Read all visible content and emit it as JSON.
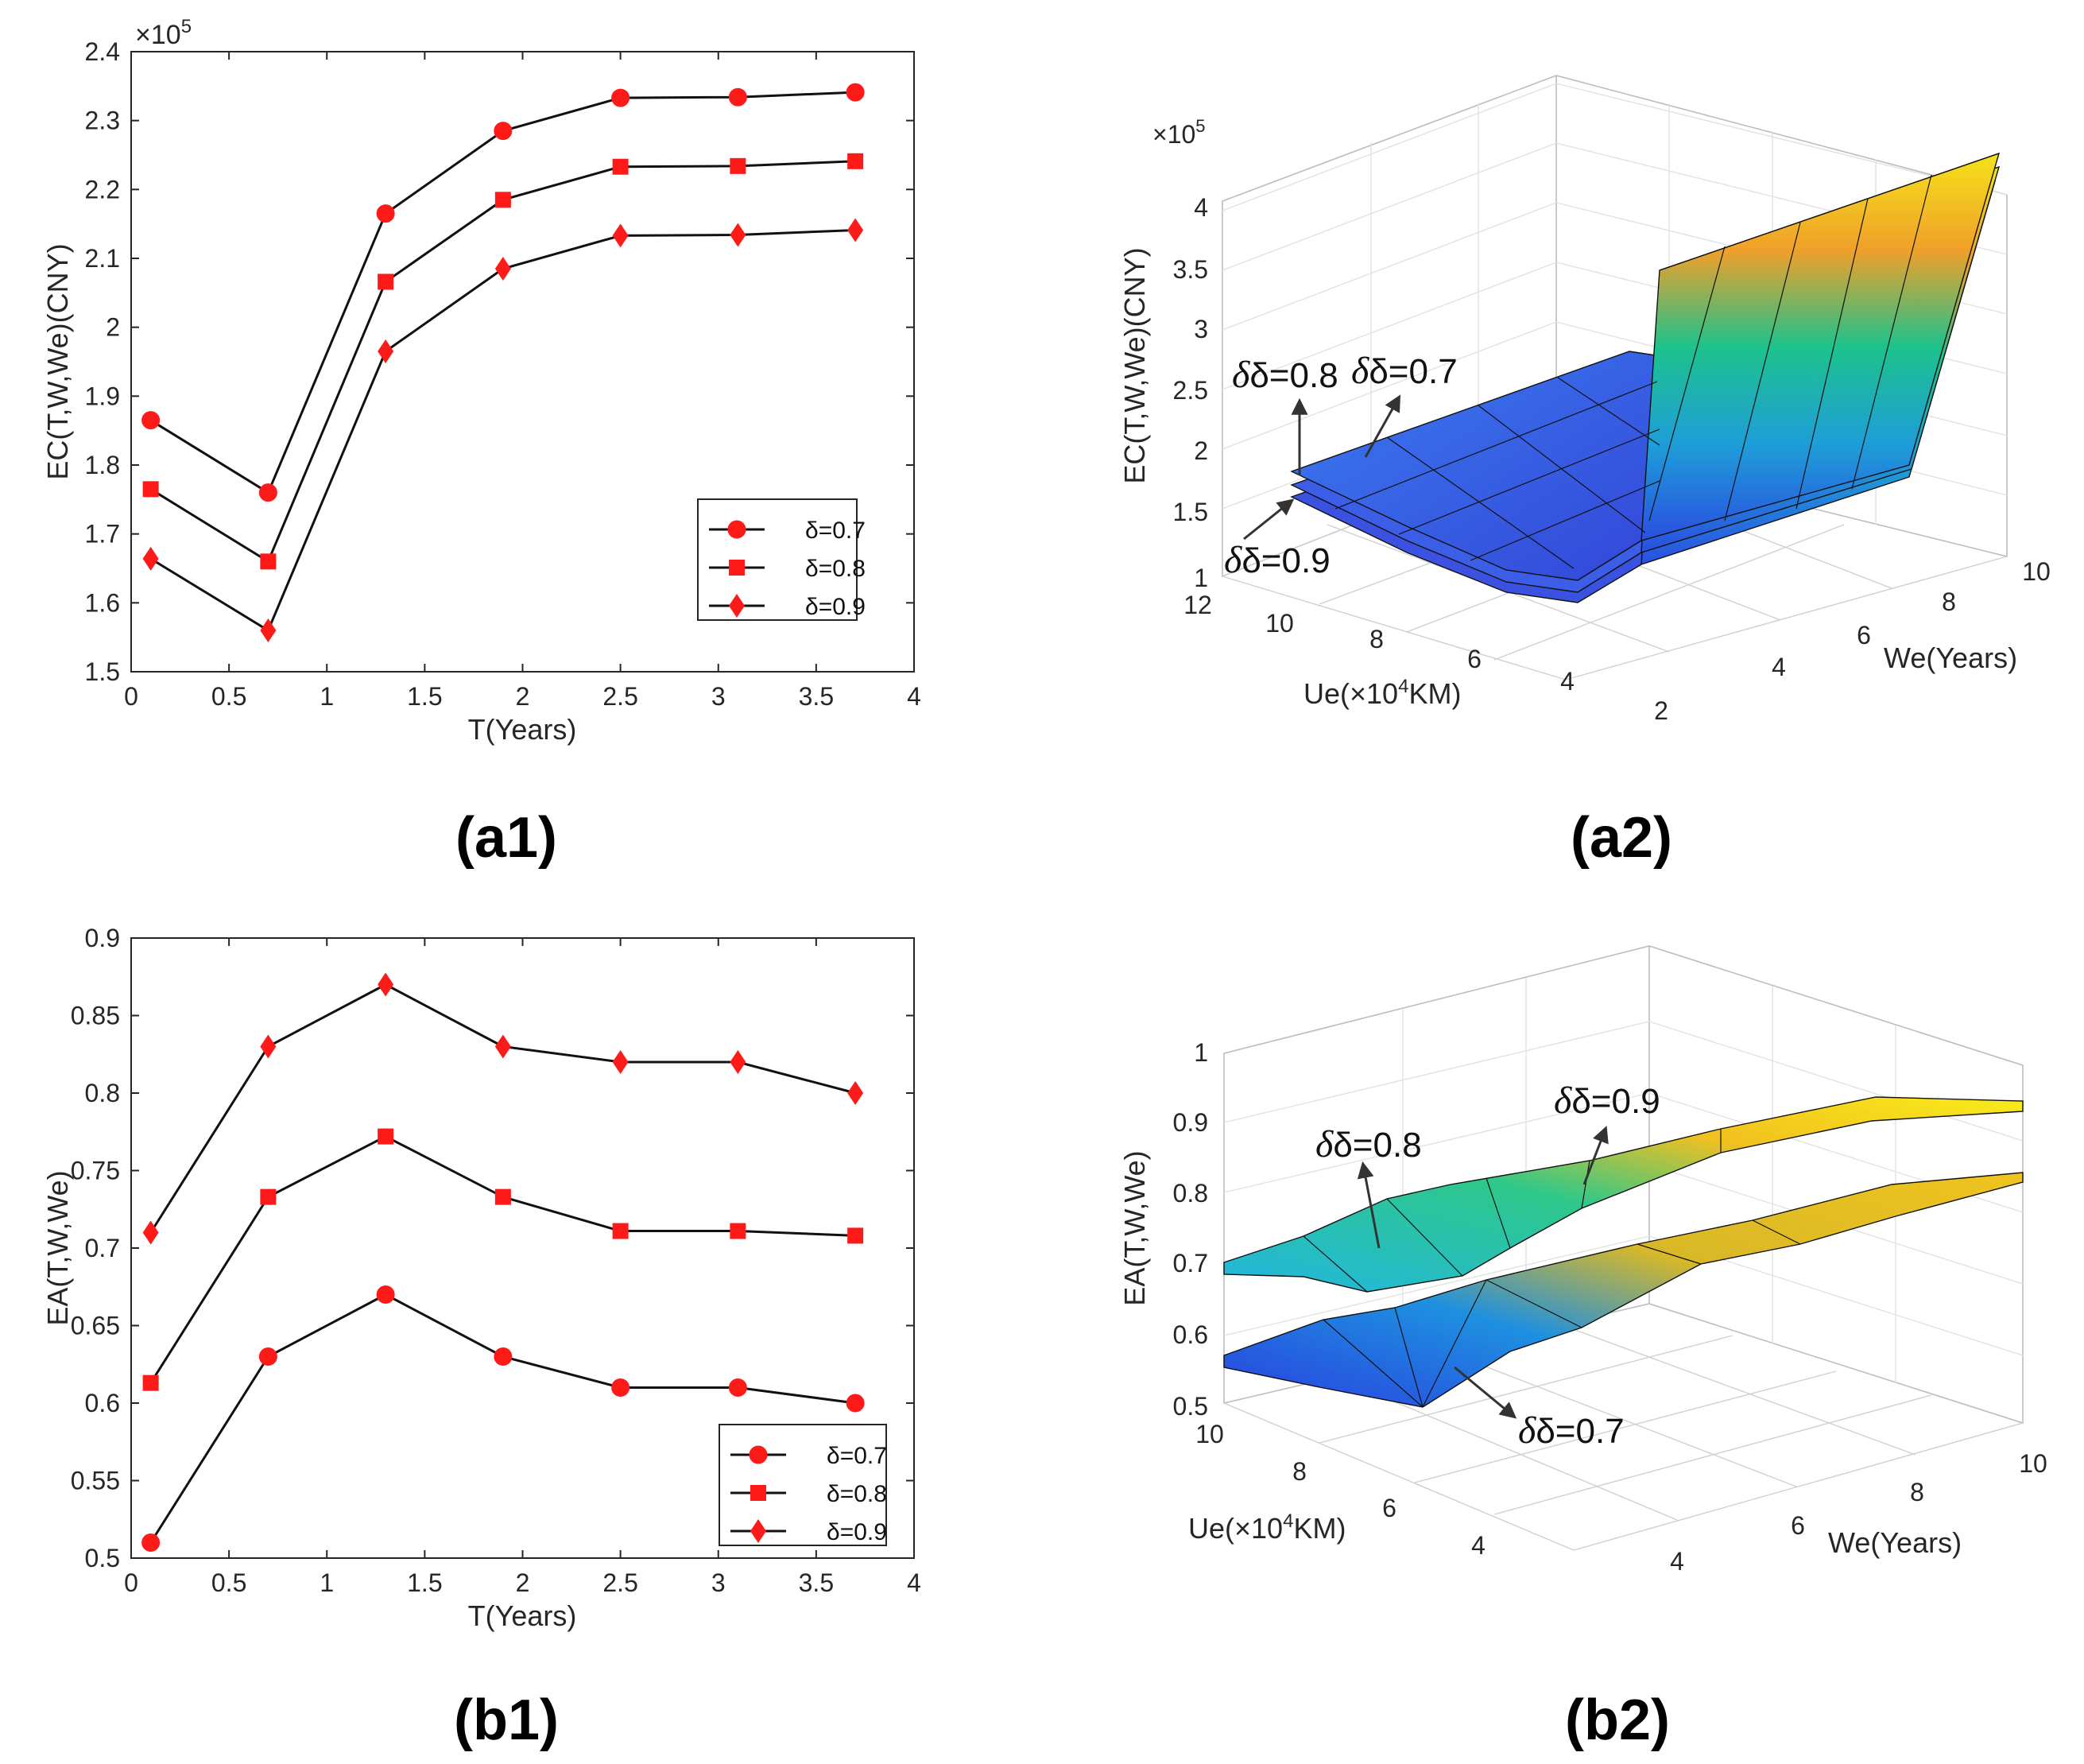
{
  "chart_data": [
    {
      "id": "a1",
      "type": "line",
      "panel_label": "(a1)",
      "xlabel": "T(Years)",
      "ylabel": "EC(T,W,We)(CNY)",
      "exponent_label": "×10",
      "exponent_power": "5",
      "xlim": [
        0,
        4
      ],
      "ylim": [
        1.5,
        2.4
      ],
      "xticks": [
        "0",
        "0.5",
        "1",
        "1.5",
        "2",
        "2.5",
        "3",
        "3.5",
        "4"
      ],
      "yticks": [
        "1.5",
        "1.6",
        "1.7",
        "1.8",
        "1.9",
        "2",
        "2.1",
        "2.2",
        "2.3",
        "2.4"
      ],
      "x": [
        0.1,
        0.7,
        1.3,
        1.9,
        2.5,
        3.1,
        3.7
      ],
      "series": [
        {
          "name": "δ=0.7",
          "marker": "circle",
          "values": [
            1.865,
            1.76,
            2.165,
            2.285,
            2.333,
            2.334,
            2.341
          ]
        },
        {
          "name": "δ=0.8",
          "marker": "square",
          "values": [
            1.765,
            1.66,
            2.066,
            2.185,
            2.233,
            2.234,
            2.241
          ]
        },
        {
          "name": "δ=0.9",
          "marker": "diamond",
          "values": [
            1.664,
            1.56,
            1.965,
            2.085,
            2.133,
            2.134,
            2.141
          ]
        }
      ]
    },
    {
      "id": "a2",
      "type": "surface",
      "panel_label": "(a2)",
      "zlabel": "EC(T,W,We)(CNY)",
      "xlabel": "Ue(×10",
      "xlabel_power": "4",
      "xlabel_tail": "KM)",
      "ylabel": "We(Years)",
      "exponent_label": "×10",
      "exponent_power": "5",
      "zticks": [
        "1",
        "1.5",
        "2",
        "2.5",
        "3",
        "3.5",
        "4"
      ],
      "xticks": [
        "12",
        "10",
        "8",
        "6",
        "4",
        "2"
      ],
      "yticks": [
        "4",
        "6",
        "8",
        "10"
      ],
      "annotations": [
        "δ=0.8",
        "δ=0.7",
        "δ=0.9"
      ]
    },
    {
      "id": "b1",
      "type": "line",
      "panel_label": "(b1)",
      "xlabel": "T(Years)",
      "ylabel": "EA(T,W,We)",
      "xlim": [
        0,
        4
      ],
      "ylim": [
        0.5,
        0.9
      ],
      "xticks": [
        "0",
        "0.5",
        "1",
        "1.5",
        "2",
        "2.5",
        "3",
        "3.5",
        "4"
      ],
      "yticks": [
        "0.5",
        "0.55",
        "0.6",
        "0.65",
        "0.7",
        "0.75",
        "0.8",
        "0.85",
        "0.9"
      ],
      "x": [
        0.1,
        0.7,
        1.3,
        1.9,
        2.5,
        3.1,
        3.7
      ],
      "series": [
        {
          "name": "δ=0.7",
          "marker": "circle",
          "values": [
            0.51,
            0.63,
            0.67,
            0.63,
            0.61,
            0.61,
            0.6
          ]
        },
        {
          "name": "δ=0.8",
          "marker": "square",
          "values": [
            0.613,
            0.733,
            0.772,
            0.733,
            0.711,
            0.711,
            0.708
          ]
        },
        {
          "name": "δ=0.9",
          "marker": "diamond",
          "values": [
            0.71,
            0.83,
            0.87,
            0.83,
            0.82,
            0.82,
            0.8
          ]
        }
      ]
    },
    {
      "id": "b2",
      "type": "surface",
      "panel_label": "(b2)",
      "zlabel": "EA(T,W,We)",
      "xlabel": "Ue(×10",
      "xlabel_power": "4",
      "xlabel_tail": "KM)",
      "ylabel": "We(Years)",
      "zticks": [
        "0.5",
        "0.6",
        "0.7",
        "0.8",
        "0.9",
        "1"
      ],
      "xticks": [
        "10",
        "8",
        "6",
        "4"
      ],
      "yticks": [
        "4",
        "6",
        "8",
        "10"
      ],
      "annotations": [
        "δ=0.9",
        "δ=0.8",
        "δ=0.7"
      ]
    }
  ]
}
